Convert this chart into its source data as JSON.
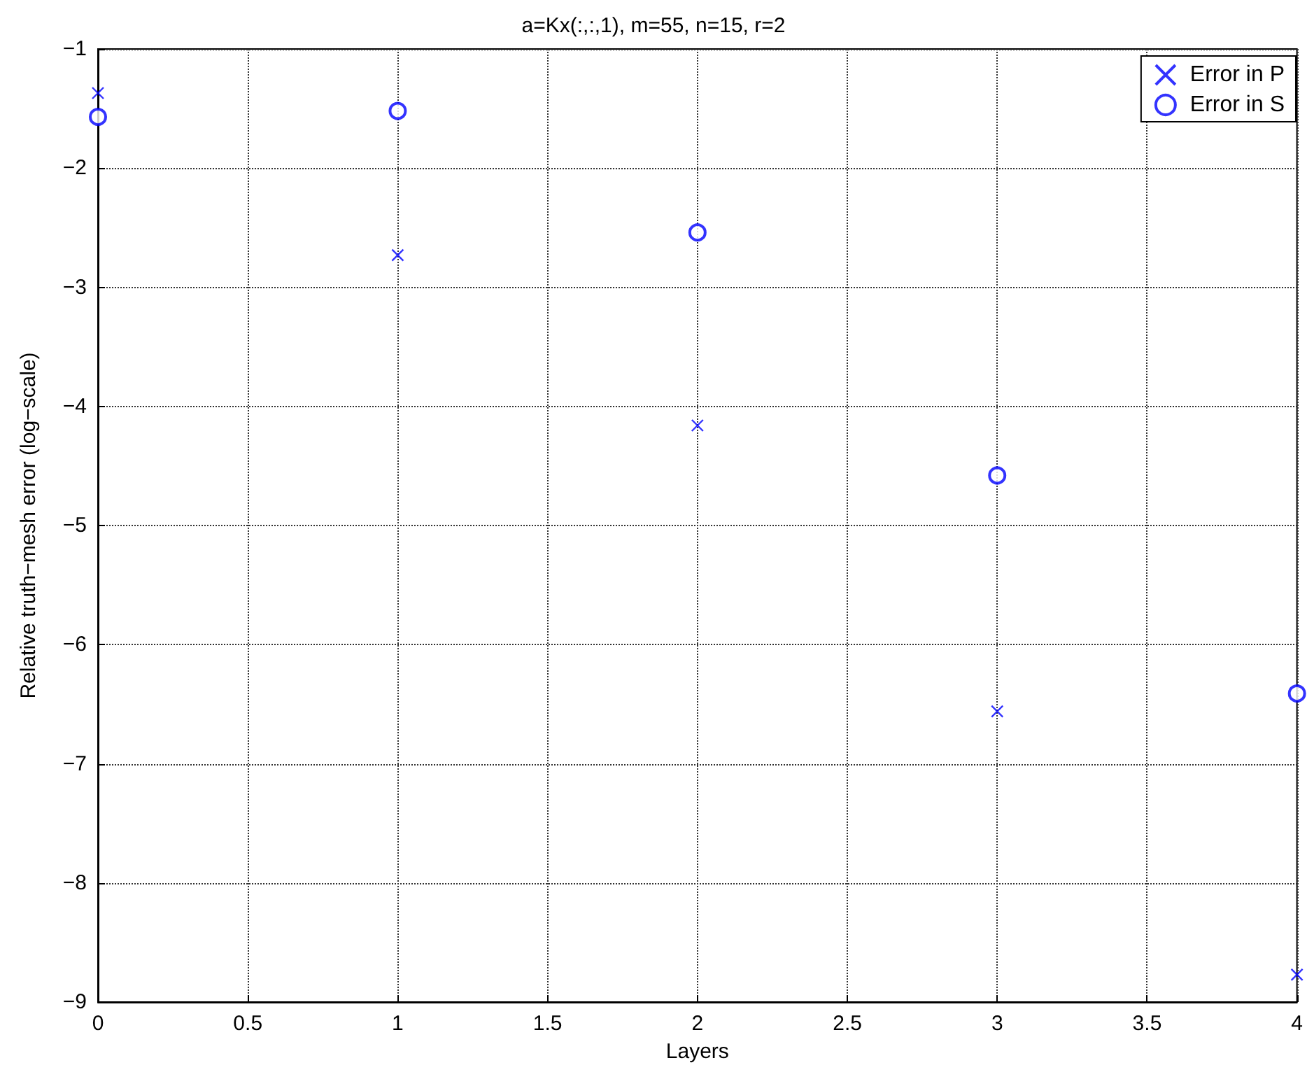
{
  "chart_data": {
    "type": "scatter",
    "title": "a=Kx(:,:,1), m=55, n=15, r=2",
    "xlabel": "Layers",
    "ylabel": "Relative truth−mesh error (log−scale)",
    "x": [
      0,
      1,
      2,
      3,
      4
    ],
    "series": [
      {
        "name": "Error in P",
        "color": "#0000ff",
        "marker": "cross",
        "values": [
          -1.37,
          -2.73,
          -4.16,
          -6.56,
          -8.77
        ]
      },
      {
        "name": "Error in S",
        "color": "#0000ff",
        "marker": "circle",
        "values": [
          -1.57,
          -1.52,
          -2.54,
          -4.58,
          -6.41
        ]
      }
    ],
    "xlim": [
      0,
      4
    ],
    "xticks": [
      0,
      0.5,
      1,
      1.5,
      2,
      2.5,
      3,
      3.5,
      4
    ],
    "ylim": [
      -9,
      -1
    ],
    "yticks": [
      -9,
      -8,
      -7,
      -6,
      -5,
      -4,
      -3,
      -2,
      -1
    ],
    "grid": true,
    "legend": "top right"
  }
}
